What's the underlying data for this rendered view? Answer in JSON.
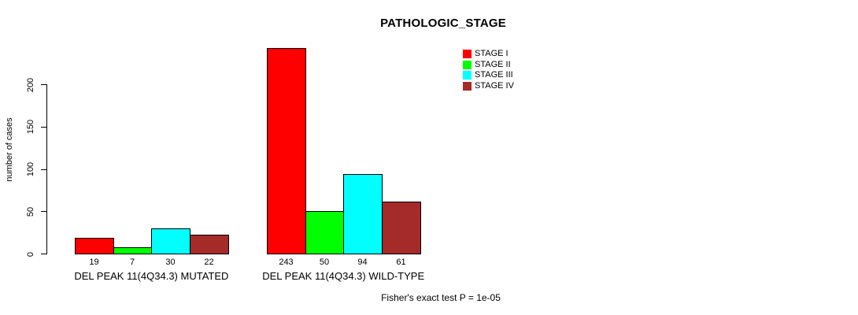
{
  "title": "PATHOLOGIC_STAGE",
  "footer_note": "Fisher's exact test P = 1e-05",
  "chart_data": {
    "type": "bar",
    "title": "PATHOLOGIC_STAGE",
    "xlabel": "",
    "ylabel": "number of cases",
    "yticks": [
      0,
      50,
      100,
      150,
      200
    ],
    "ylim": [
      0,
      245
    ],
    "grid": false,
    "legend_position": "top-right",
    "categories": [
      "DEL PEAK 11(4Q34.3) MUTATED",
      "DEL PEAK 11(4Q34.3) WILD-TYPE"
    ],
    "series": [
      {
        "name": "STAGE I",
        "color": "#ff0000",
        "values": [
          19,
          243
        ]
      },
      {
        "name": "STAGE II",
        "color": "#00ff00",
        "values": [
          7,
          50
        ]
      },
      {
        "name": "STAGE III",
        "color": "#00ffff",
        "values": [
          30,
          94
        ]
      },
      {
        "name": "STAGE IV",
        "color": "#a52a2a",
        "values": [
          22,
          61
        ]
      }
    ],
    "bar_value_labels": [
      [
        19,
        7,
        30,
        22
      ],
      [
        243,
        50,
        94,
        61
      ]
    ],
    "annotation": "Fisher's exact test P = 1e-05"
  },
  "legend": {
    "items": [
      {
        "label": "STAGE I",
        "color": "#ff0000"
      },
      {
        "label": "STAGE II",
        "color": "#00ff00"
      },
      {
        "label": "STAGE III",
        "color": "#00ffff"
      },
      {
        "label": "STAGE IV",
        "color": "#a52a2a"
      }
    ]
  }
}
